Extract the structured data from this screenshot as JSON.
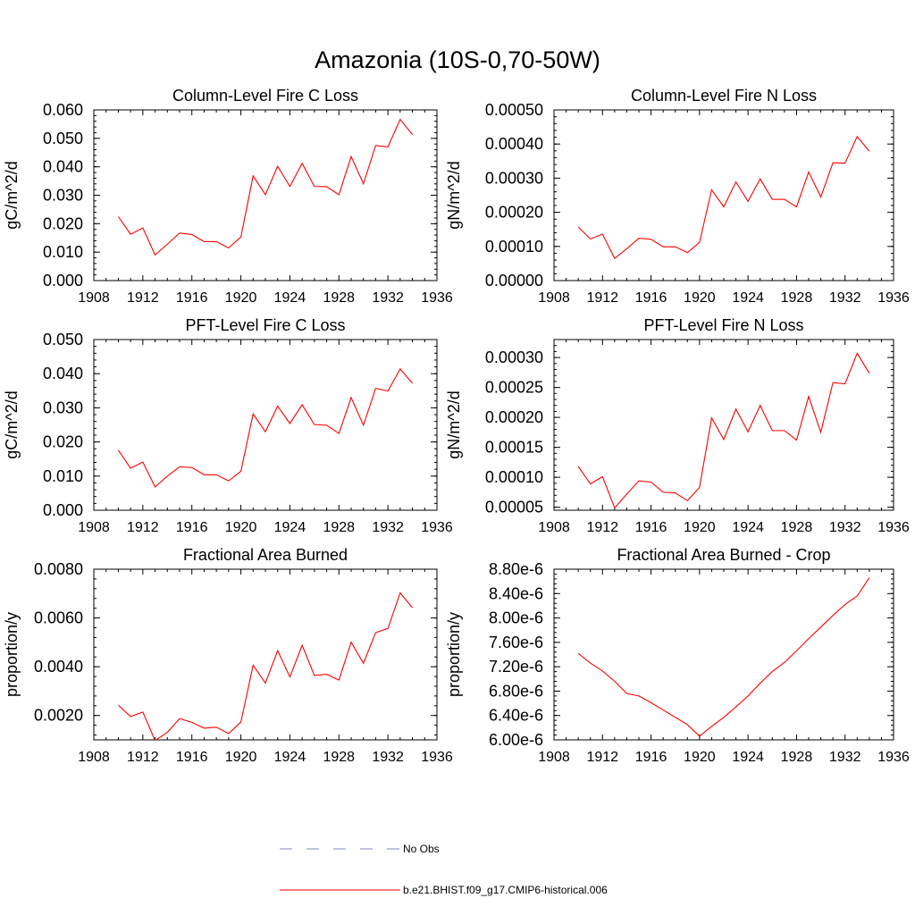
{
  "title": "Amazonia (10S-0,70-50W)",
  "chart_data": [
    {
      "type": "line",
      "title": "Column-Level Fire C Loss",
      "ylabel": "gC/m^2/d",
      "xlim": [
        1908,
        1936
      ],
      "ylim": [
        0,
        0.06
      ],
      "xticks": [
        "1908",
        "1912",
        "1916",
        "1920",
        "1924",
        "1928",
        "1932",
        "1936"
      ],
      "yticks": [
        "0.000",
        "0.010",
        "0.020",
        "0.030",
        "0.040",
        "0.050",
        "0.060"
      ],
      "x": [
        1910,
        1911,
        1912,
        1913,
        1914,
        1915,
        1916,
        1917,
        1918,
        1919,
        1920,
        1921,
        1922,
        1923,
        1924,
        1925,
        1926,
        1927,
        1928,
        1929,
        1930,
        1931,
        1932,
        1933,
        1934
      ],
      "series": [
        {
          "values": [
            0.0225,
            0.0163,
            0.0185,
            0.009,
            0.0128,
            0.0167,
            0.0162,
            0.0137,
            0.0137,
            0.0115,
            0.0153,
            0.0368,
            0.0302,
            0.0402,
            0.0331,
            0.0412,
            0.0331,
            0.033,
            0.0302,
            0.0436,
            0.034,
            0.0475,
            0.047,
            0.0567,
            0.0513
          ]
        }
      ]
    },
    {
      "type": "line",
      "title": "Column-Level Fire N Loss",
      "ylabel": "gN/m^2/d",
      "xlim": [
        1908,
        1936
      ],
      "ylim": [
        0,
        0.0005
      ],
      "xticks": [
        "1908",
        "1912",
        "1916",
        "1920",
        "1924",
        "1928",
        "1932",
        "1936"
      ],
      "yticks": [
        "0.00000",
        "0.00010",
        "0.00020",
        "0.00030",
        "0.00040",
        "0.00050"
      ],
      "x": [
        1910,
        1911,
        1912,
        1913,
        1914,
        1915,
        1916,
        1917,
        1918,
        1919,
        1920,
        1921,
        1922,
        1923,
        1924,
        1925,
        1926,
        1927,
        1928,
        1929,
        1930,
        1931,
        1932,
        1933,
        1934
      ],
      "series": [
        {
          "values": [
            0.000157,
            0.000122,
            0.000136,
            6.5e-05,
            9.3e-05,
            0.000124,
            0.000121,
            9.9e-05,
            9.9e-05,
            8.2e-05,
            0.000112,
            0.000266,
            0.000216,
            0.000289,
            0.000232,
            0.000298,
            0.000238,
            0.000238,
            0.000216,
            0.000318,
            0.000245,
            0.000345,
            0.000344,
            0.000422,
            0.000379
          ]
        }
      ]
    },
    {
      "type": "line",
      "title": "PFT-Level Fire C Loss",
      "ylabel": "gC/m^2/d",
      "xlim": [
        1908,
        1936
      ],
      "ylim": [
        0,
        0.05
      ],
      "xticks": [
        "1908",
        "1912",
        "1916",
        "1920",
        "1924",
        "1928",
        "1932",
        "1936"
      ],
      "yticks": [
        "0.000",
        "0.010",
        "0.020",
        "0.030",
        "0.040",
        "0.050"
      ],
      "x": [
        1910,
        1911,
        1912,
        1913,
        1914,
        1915,
        1916,
        1917,
        1918,
        1919,
        1920,
        1921,
        1922,
        1923,
        1924,
        1925,
        1926,
        1927,
        1928,
        1929,
        1930,
        1931,
        1932,
        1933,
        1934
      ],
      "series": [
        {
          "values": [
            0.0176,
            0.0123,
            0.0141,
            0.0068,
            0.01,
            0.0127,
            0.0125,
            0.0104,
            0.0104,
            0.0086,
            0.0114,
            0.0282,
            0.023,
            0.0305,
            0.0254,
            0.0309,
            0.0251,
            0.0249,
            0.0225,
            0.033,
            0.0249,
            0.0357,
            0.0349,
            0.0414,
            0.0372
          ]
        }
      ]
    },
    {
      "type": "line",
      "title": "PFT-Level Fire N Loss",
      "ylabel": "gN/m^2/d",
      "xlim": [
        1908,
        1936
      ],
      "ylim": [
        4.5e-05,
        0.00033
      ],
      "xticks": [
        "1908",
        "1912",
        "1916",
        "1920",
        "1924",
        "1928",
        "1932",
        "1936"
      ],
      "yticks": [
        "0.00005",
        "0.00010",
        "0.00015",
        "0.00020",
        "0.00025",
        "0.00030"
      ],
      "x": [
        1910,
        1911,
        1912,
        1913,
        1914,
        1915,
        1916,
        1917,
        1918,
        1919,
        1920,
        1921,
        1922,
        1923,
        1924,
        1925,
        1926,
        1927,
        1928,
        1929,
        1930,
        1931,
        1932,
        1933,
        1934
      ],
      "series": [
        {
          "values": [
            0.000118,
            8.9e-05,
            0.000101,
            4.9e-05,
            7.2e-05,
            9.4e-05,
            9.2e-05,
            7.5e-05,
            7.4e-05,
            6.1e-05,
            8.3e-05,
            0.000199,
            0.000163,
            0.000214,
            0.000176,
            0.00022,
            0.000178,
            0.000178,
            0.000162,
            0.000235,
            0.000175,
            0.000258,
            0.000256,
            0.000307,
            0.000274
          ]
        }
      ]
    },
    {
      "type": "line",
      "title": "Fractional Area Burned",
      "ylabel": "proportion/y",
      "xlim": [
        1908,
        1936
      ],
      "ylim": [
        0.001,
        0.008
      ],
      "xticks": [
        "1908",
        "1912",
        "1916",
        "1920",
        "1924",
        "1928",
        "1932",
        "1936"
      ],
      "yticks": [
        "0.0020",
        "0.0040",
        "0.0060",
        "0.0080"
      ],
      "ytick_values": [
        0.002,
        0.004,
        0.006,
        0.008
      ],
      "x": [
        1910,
        1911,
        1912,
        1913,
        1914,
        1915,
        1916,
        1917,
        1918,
        1919,
        1920,
        1921,
        1922,
        1923,
        1924,
        1925,
        1926,
        1927,
        1928,
        1929,
        1930,
        1931,
        1932,
        1933,
        1934
      ],
      "series": [
        {
          "values": [
            0.00242,
            0.00196,
            0.00214,
            0.00097,
            0.00131,
            0.00187,
            0.00172,
            0.00148,
            0.00152,
            0.00126,
            0.00173,
            0.00406,
            0.00333,
            0.00466,
            0.00358,
            0.00488,
            0.00364,
            0.00369,
            0.00345,
            0.00501,
            0.00414,
            0.0054,
            0.00557,
            0.00703,
            0.00642
          ]
        }
      ]
    },
    {
      "type": "line",
      "title": "Fractional Area Burned - Crop",
      "ylabel": "proportion/y",
      "xlim": [
        1908,
        1936
      ],
      "ylim": [
        6e-06,
        8.8e-06
      ],
      "xticks": [
        "1908",
        "1912",
        "1916",
        "1920",
        "1924",
        "1928",
        "1932",
        "1936"
      ],
      "yticks": [
        "6.00e-6",
        "6.40e-6",
        "6.80e-6",
        "7.20e-6",
        "7.60e-6",
        "8.00e-6",
        "8.40e-6",
        "8.80e-6"
      ],
      "x": [
        1910,
        1911,
        1912,
        1913,
        1914,
        1915,
        1916,
        1917,
        1918,
        1919,
        1920,
        1921,
        1922,
        1923,
        1924,
        1925,
        1926,
        1927,
        1928,
        1929,
        1930,
        1931,
        1932,
        1933,
        1934
      ],
      "series": [
        {
          "values": [
            7.42e-06,
            7.26e-06,
            7.13e-06,
            6.96e-06,
            6.76e-06,
            6.72e-06,
            6.61e-06,
            6.49e-06,
            6.37e-06,
            6.25e-06,
            6.06e-06,
            6.22e-06,
            6.37e-06,
            6.54e-06,
            6.72e-06,
            6.93e-06,
            7.12e-06,
            7.27e-06,
            7.46e-06,
            7.66e-06,
            7.85e-06,
            8.04e-06,
            8.22e-06,
            8.36e-06,
            8.66e-06
          ]
        }
      ]
    }
  ],
  "legend": [
    {
      "label": "No Obs",
      "color": "#7e8bc1",
      "style": "dashed"
    },
    {
      "label": "b.e21.BHIST.f09_g17.CMIP6-historical.006",
      "color": "#ff0000",
      "style": "solid"
    }
  ],
  "colors": {
    "series": "#ff0000",
    "axes": "#000000"
  }
}
